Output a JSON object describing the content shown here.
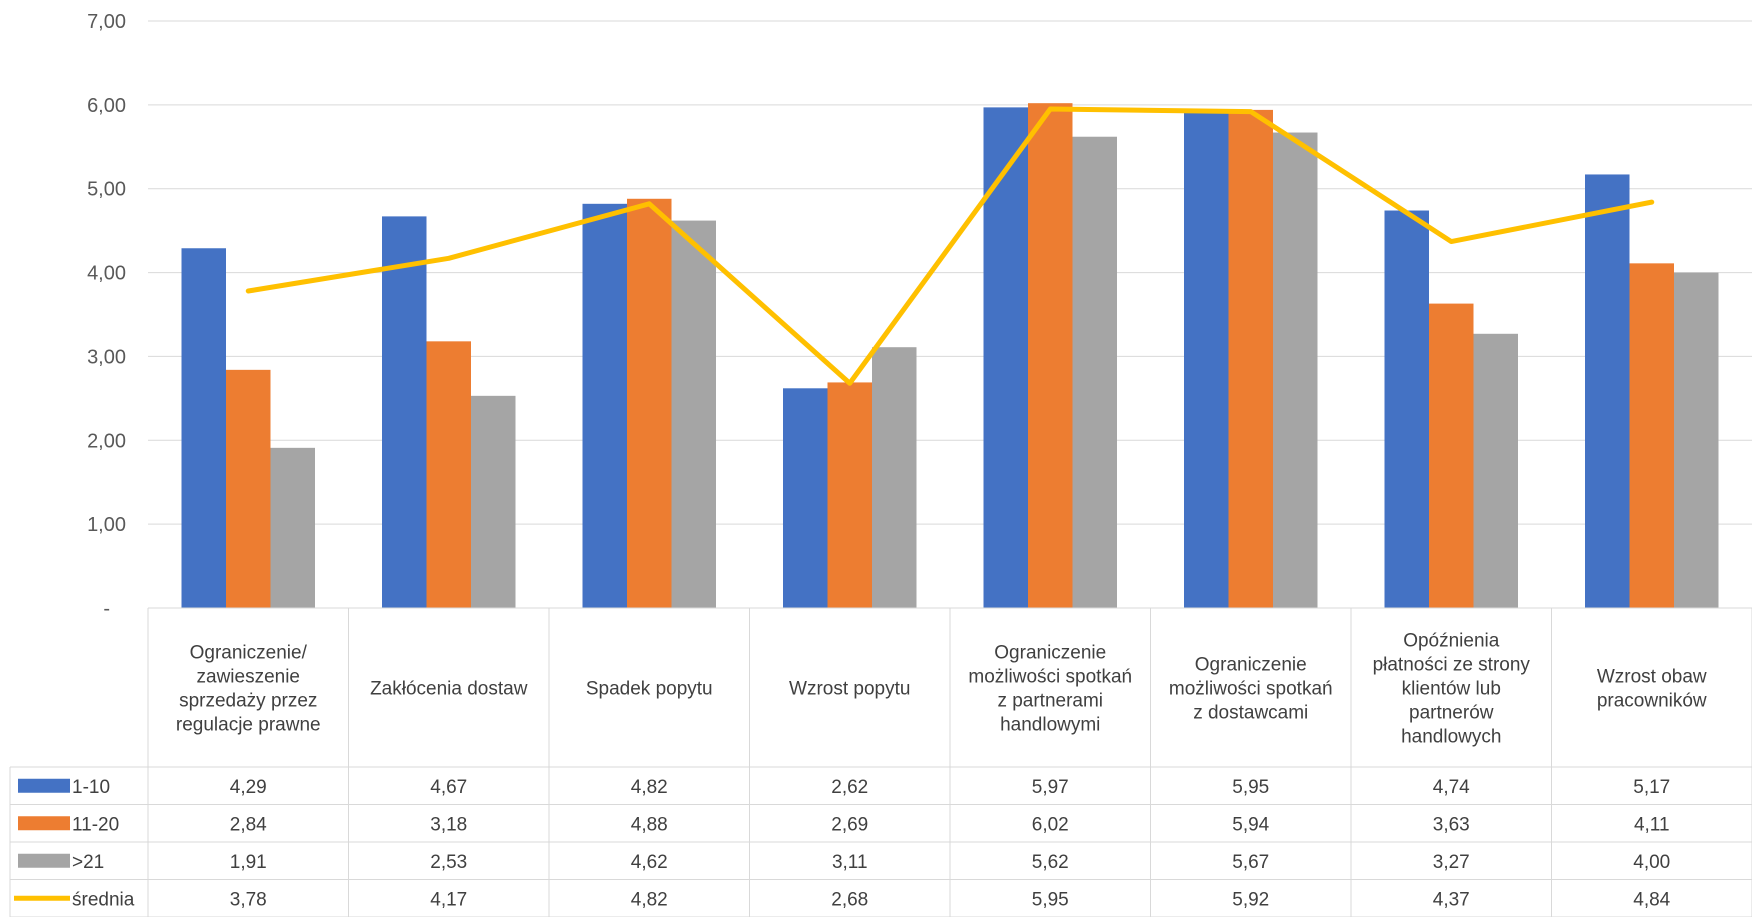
{
  "chart_data": {
    "type": "bar",
    "title": "",
    "xlabel": "",
    "ylabel": "",
    "ylim": [
      0,
      7
    ],
    "yticks": [
      "-",
      "1,00",
      "2,00",
      "3,00",
      "4,00",
      "5,00",
      "6,00",
      "7,00"
    ],
    "grid": true,
    "legend": "data-table",
    "categories": [
      [
        "Ograniczenie/",
        "zawieszenie",
        "sprzedaży przez",
        "regulacje prawne"
      ],
      [
        "Zakłócenia dostaw"
      ],
      [
        "Spadek popytu"
      ],
      [
        "Wzrost popytu"
      ],
      [
        "Ograniczenie",
        "możliwości spotkań",
        "z partnerami",
        "handlowymi"
      ],
      [
        "Ograniczenie",
        "możliwości spotkań",
        "z dostawcami"
      ],
      [
        "Opóźnienia",
        "płatności ze strony",
        "klientów lub",
        "partnerów",
        "handlowych"
      ],
      [
        "Wzrost obaw",
        "pracowników"
      ]
    ],
    "series": [
      {
        "name": "1-10",
        "kind": "bar",
        "color": "#4472C4",
        "values": [
          4.29,
          4.67,
          4.82,
          2.62,
          5.97,
          5.95,
          4.74,
          5.17
        ],
        "labels": [
          "4,29",
          "4,67",
          "4,82",
          "2,62",
          "5,97",
          "5,95",
          "4,74",
          "5,17"
        ]
      },
      {
        "name": "11-20",
        "kind": "bar",
        "color": "#ED7D31",
        "values": [
          2.84,
          3.18,
          4.88,
          2.69,
          6.02,
          5.94,
          3.63,
          4.11
        ],
        "labels": [
          "2,84",
          "3,18",
          "4,88",
          "2,69",
          "6,02",
          "5,94",
          "3,63",
          "4,11"
        ]
      },
      {
        "name": ">21",
        "kind": "bar",
        "color": "#A5A5A5",
        "values": [
          1.91,
          2.53,
          4.62,
          3.11,
          5.62,
          5.67,
          3.27,
          4.0
        ],
        "labels": [
          "1,91",
          "2,53",
          "4,62",
          "3,11",
          "5,62",
          "5,67",
          "3,27",
          "4,00"
        ]
      },
      {
        "name": "średnia",
        "kind": "line",
        "color": "#FFC000",
        "values": [
          3.78,
          4.17,
          4.82,
          2.68,
          5.95,
          5.92,
          4.37,
          4.84
        ],
        "labels": [
          "3,78",
          "4,17",
          "4,82",
          "2,68",
          "5,95",
          "5,92",
          "4,37",
          "4,84"
        ]
      }
    ]
  }
}
